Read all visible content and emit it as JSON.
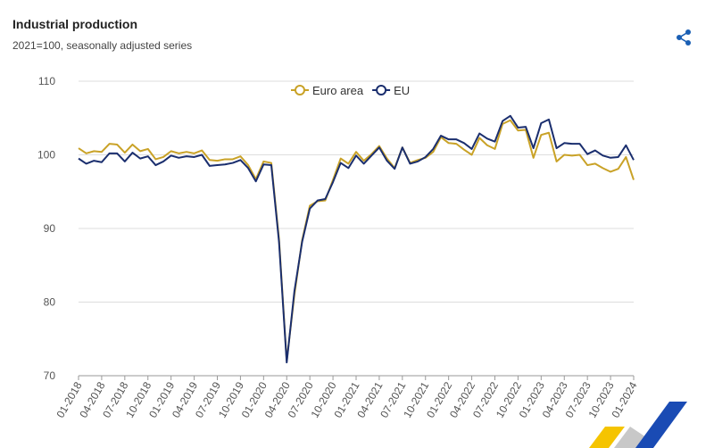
{
  "chart_data": {
    "type": "line",
    "title": "Industrial production",
    "subtitle": "2021=100, seasonally adjusted series",
    "categories": [
      "01-2018",
      null,
      null,
      "04-2018",
      null,
      null,
      "07-2018",
      null,
      null,
      "10-2018",
      null,
      null,
      "01-2019",
      null,
      null,
      "04-2019",
      null,
      null,
      "07-2019",
      null,
      null,
      "10-2019",
      null,
      null,
      "01-2020",
      null,
      null,
      "04-2020",
      null,
      null,
      "07-2020",
      null,
      null,
      "10-2020",
      null,
      null,
      "01-2021",
      null,
      null,
      "04-2021",
      null,
      null,
      "07-2021",
      null,
      null,
      "10-2021",
      null,
      null,
      "01-2022",
      null,
      null,
      "04-2022",
      null,
      null,
      "07-2022",
      null,
      null,
      "10-2022",
      null,
      null,
      "01-2023",
      null,
      null,
      "04-2023",
      null,
      null,
      "07-2023",
      null,
      null,
      "10-2023",
      null,
      null,
      "01-2024"
    ],
    "series": [
      {
        "name": "Euro area",
        "color": "#c9a227",
        "values": [
          100.9,
          100.2,
          100.5,
          100.4,
          101.5,
          101.4,
          100.3,
          101.4,
          100.5,
          100.8,
          99.4,
          99.7,
          100.5,
          100.2,
          100.4,
          100.2,
          100.6,
          99.3,
          99.2,
          99.4,
          99.4,
          99.8,
          98.6,
          96.7,
          99.1,
          98.9,
          88.6,
          72.0,
          81.0,
          88.4,
          93.1,
          93.7,
          93.8,
          96.6,
          99.5,
          98.8,
          100.4,
          99.2,
          100.1,
          101.2,
          99.5,
          98.2,
          101.0,
          98.9,
          99.3,
          99.6,
          100.4,
          102.4,
          101.6,
          101.5,
          100.7,
          100.0,
          102.3,
          101.3,
          100.8,
          104.2,
          104.7,
          103.3,
          103.4,
          99.6,
          102.7,
          103.0,
          99.1,
          100.0,
          99.9,
          100.0,
          98.6,
          98.8,
          98.2,
          97.7,
          98.1,
          99.7,
          96.6
        ]
      },
      {
        "name": "EU",
        "color": "#1a2e6e",
        "values": [
          99.5,
          98.8,
          99.2,
          99.0,
          100.2,
          100.2,
          99.1,
          100.3,
          99.5,
          99.8,
          98.6,
          99.1,
          99.9,
          99.6,
          99.8,
          99.7,
          100.0,
          98.5,
          98.6,
          98.7,
          98.9,
          99.3,
          98.2,
          96.4,
          98.7,
          98.6,
          88.2,
          71.8,
          81.5,
          88.2,
          92.7,
          93.8,
          94.0,
          96.3,
          98.9,
          98.2,
          99.9,
          98.8,
          99.9,
          101.0,
          99.2,
          98.1,
          101.0,
          98.8,
          99.1,
          99.7,
          100.8,
          102.6,
          102.1,
          102.1,
          101.6,
          100.8,
          102.9,
          102.2,
          101.8,
          104.6,
          105.3,
          103.7,
          103.8,
          100.9,
          104.3,
          104.8,
          100.9,
          101.6,
          101.5,
          101.5,
          100.1,
          100.6,
          99.9,
          99.6,
          99.7,
          101.3,
          99.3
        ]
      }
    ],
    "ylim": [
      70,
      110
    ],
    "yticks": [
      70,
      80,
      90,
      100,
      110
    ],
    "grid": true,
    "legend": "top"
  }
}
